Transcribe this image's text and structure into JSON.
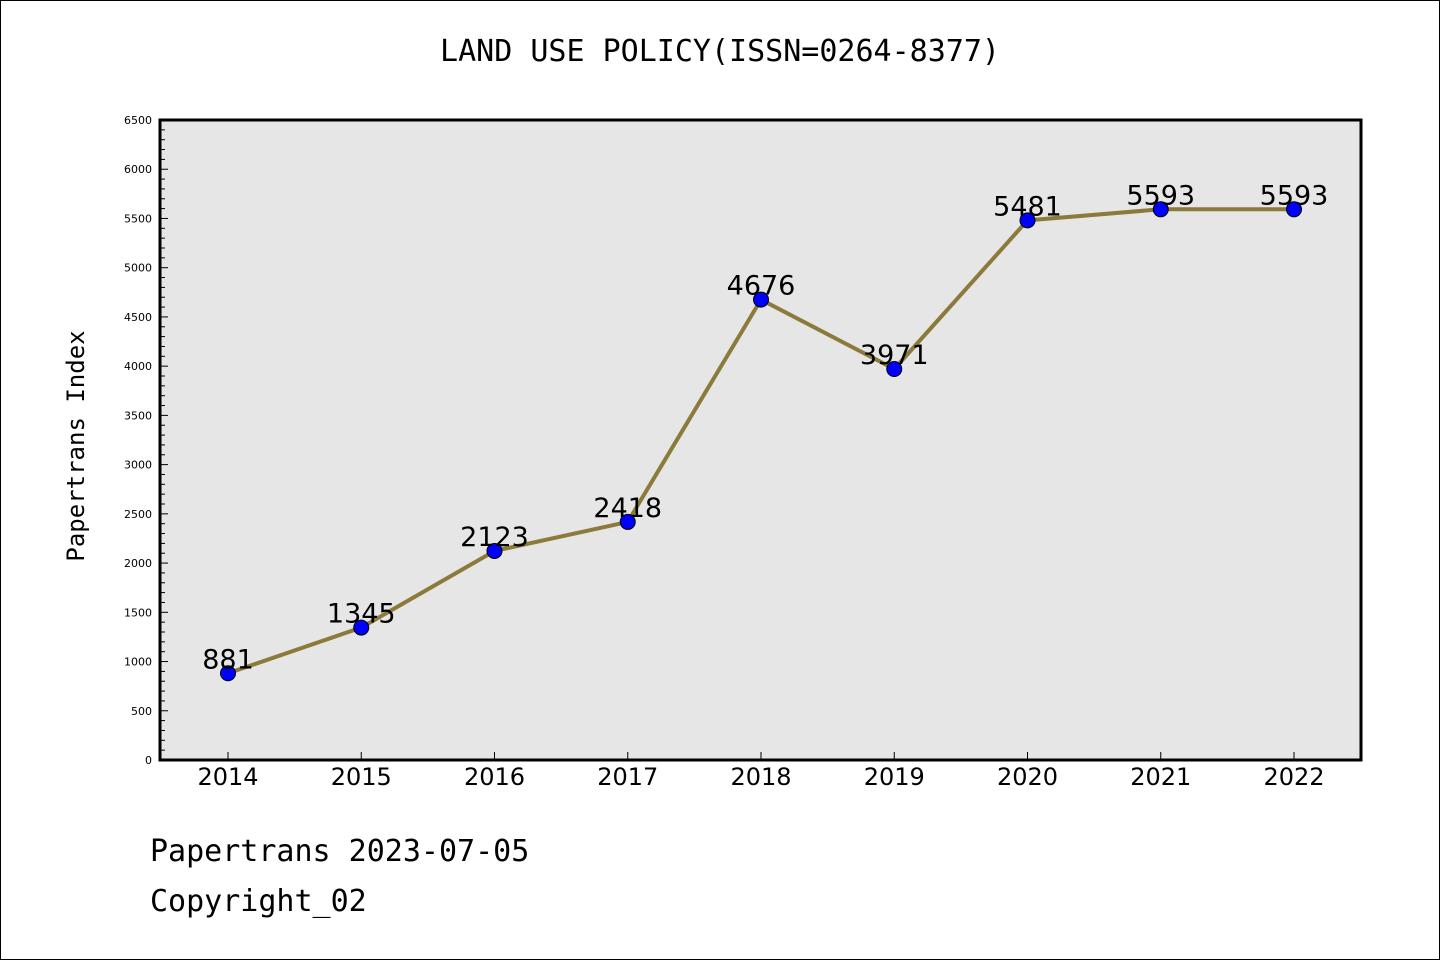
{
  "title": "LAND USE POLICY(ISSN=0264-8377)",
  "footer": {
    "line1": "Papertrans 2023-07-05",
    "line2": "Copyright_02"
  },
  "colors": {
    "plot_background": "#e6e6e6",
    "line": "#8b7a3a",
    "marker": "#0000ff"
  },
  "chart_data": {
    "type": "line",
    "title": "LAND USE POLICY(ISSN=0264-8377)",
    "xlabel": "",
    "ylabel": "Papertrans Index",
    "categories": [
      "2014",
      "2015",
      "2016",
      "2017",
      "2018",
      "2019",
      "2020",
      "2021",
      "2022"
    ],
    "series": [
      {
        "values": [
          881,
          1345,
          2123,
          2418,
          4676,
          3971,
          5481,
          5593,
          5593
        ]
      }
    ],
    "data_labels": [
      "881",
      "1345",
      "2123",
      "2418",
      "4676",
      "3971",
      "5481",
      "5593",
      "5593"
    ],
    "ylim": [
      0,
      6500
    ],
    "yticks": [
      0,
      500,
      1000,
      1500,
      2000,
      2500,
      3000,
      3500,
      4000,
      4500,
      5000,
      5500,
      6000,
      6500
    ],
    "grid": false,
    "legend": "none"
  }
}
